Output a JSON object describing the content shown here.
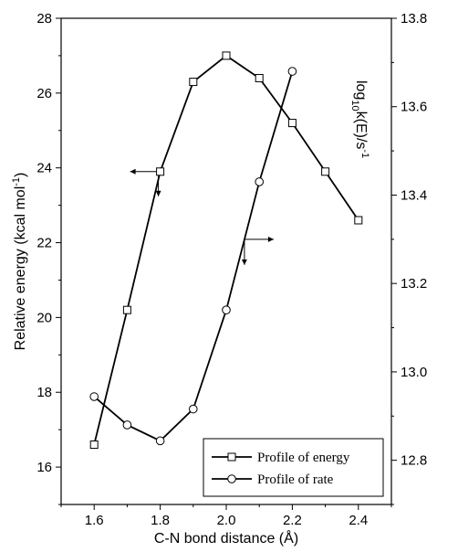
{
  "chart_data": {
    "type": "line",
    "xlabel_base": "C-N bond distance (",
    "xlabel_unit": "Å",
    "xlabel_end": ")",
    "ylabel_left_base": "Relative energy (kcal mol",
    "ylabel_left_sup": "-1",
    "ylabel_left_end": ")",
    "ylabel_right_p1": "log",
    "ylabel_right_sub": "10",
    "ylabel_right_p2": "k(E)/s",
    "ylabel_right_sup": "-1",
    "xlim": [
      1.5,
      2.5
    ],
    "ylim_left": [
      15,
      28
    ],
    "ylim_right": [
      12.7,
      13.8
    ],
    "x_ticks": [
      "1.6",
      "1.8",
      "2.0",
      "2.2",
      "2.4"
    ],
    "y_left_ticks": [
      "16",
      "18",
      "20",
      "22",
      "24",
      "26",
      "28"
    ],
    "y_right_ticks": [
      "12.8",
      "13.0",
      "13.2",
      "13.4",
      "13.6",
      "13.8"
    ],
    "series": [
      {
        "name": "Profile of energy",
        "axis": "left",
        "marker": "square",
        "x": [
          1.6,
          1.7,
          1.8,
          1.9,
          2.0,
          2.1,
          2.2,
          2.3,
          2.4
        ],
        "y": [
          16.6,
          20.2,
          23.9,
          26.3,
          27.0,
          26.4,
          25.2,
          23.9,
          22.6
        ]
      },
      {
        "name": "Profile of rate",
        "axis": "right",
        "marker": "circle",
        "x": [
          1.6,
          1.7,
          1.8,
          1.9,
          2.0,
          2.1,
          2.2
        ],
        "y": [
          12.944,
          12.88,
          12.844,
          12.916,
          13.14,
          13.43,
          13.68
        ]
      }
    ],
    "legend_position": "bottom-right",
    "grid": false
  }
}
